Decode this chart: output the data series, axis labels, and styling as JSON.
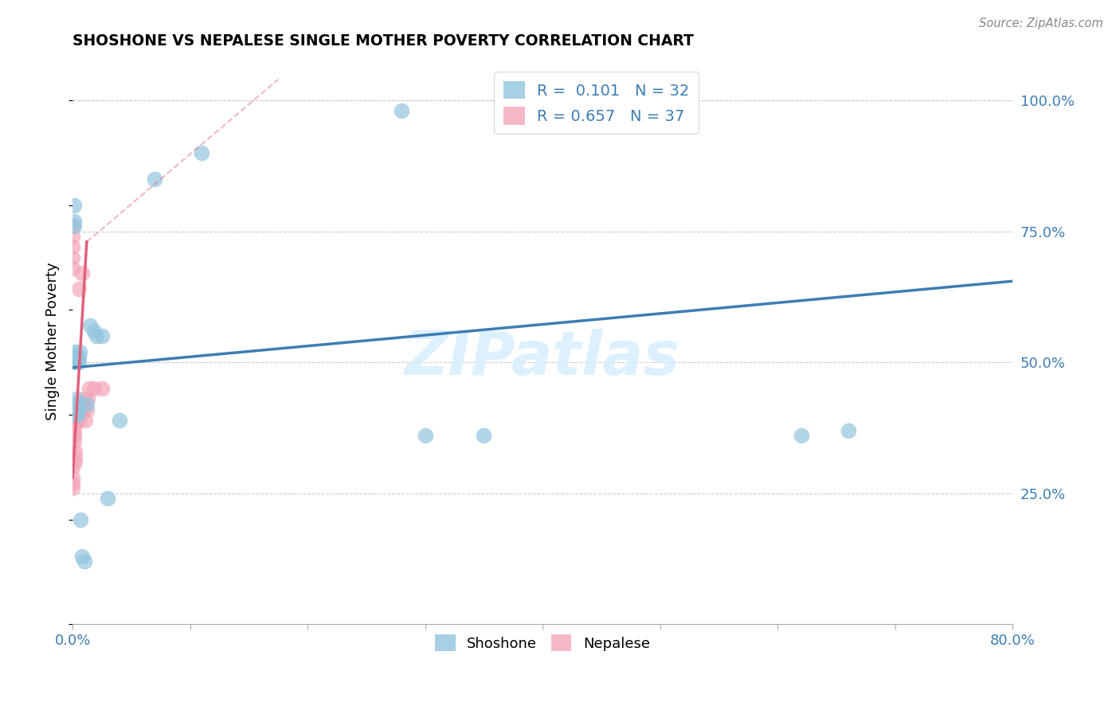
{
  "title": "SHOSHONE VS NEPALESE SINGLE MOTHER POVERTY CORRELATION CHART",
  "source": "Source: ZipAtlas.com",
  "ylabel": "Single Mother Poverty",
  "watermark": "ZIPatlas",
  "xlim": [
    0.0,
    0.8
  ],
  "ylim": [
    0.0,
    1.08
  ],
  "xticks": [
    0.0,
    0.1,
    0.2,
    0.3,
    0.4,
    0.5,
    0.6,
    0.7,
    0.8
  ],
  "xtick_labels": [
    "0.0%",
    "",
    "",
    "",
    "",
    "",
    "",
    "",
    "80.0%"
  ],
  "yticks_right": [
    0.25,
    0.5,
    0.75,
    1.0
  ],
  "ytick_labels_right": [
    "25.0%",
    "50.0%",
    "75.0%",
    "100.0%"
  ],
  "legend_r_shoshone": "0.101",
  "legend_n_shoshone": "32",
  "legend_r_nepalese": "0.657",
  "legend_n_nepalese": "37",
  "shoshone_color": "#92C5DE",
  "nepalese_color": "#F4A6B8",
  "trend_shoshone_color": "#3D7DB3",
  "trend_nepalese_color": "#E0607A",
  "shoshone_x": [
    0.001,
    0.001,
    0.001,
    0.002,
    0.002,
    0.002,
    0.003,
    0.003,
    0.003,
    0.004,
    0.004,
    0.004,
    0.005,
    0.005,
    0.006,
    0.007,
    0.008,
    0.01,
    0.012,
    0.015,
    0.018,
    0.02,
    0.025,
    0.03,
    0.04,
    0.07,
    0.11,
    0.28,
    0.62,
    0.66,
    0.3,
    0.35
  ],
  "shoshone_y": [
    0.8,
    0.77,
    0.76,
    0.52,
    0.51,
    0.5,
    0.43,
    0.42,
    0.4,
    0.42,
    0.41,
    0.4,
    0.51,
    0.5,
    0.52,
    0.2,
    0.13,
    0.12,
    0.42,
    0.57,
    0.56,
    0.55,
    0.55,
    0.24,
    0.39,
    0.85,
    0.9,
    0.98,
    0.36,
    0.37,
    0.36,
    0.36
  ],
  "nepalese_x": [
    0.0,
    0.0,
    0.0,
    0.0,
    0.0,
    0.001,
    0.001,
    0.001,
    0.001,
    0.001,
    0.001,
    0.001,
    0.001,
    0.002,
    0.002,
    0.002,
    0.003,
    0.003,
    0.004,
    0.004,
    0.005,
    0.005,
    0.006,
    0.007,
    0.008,
    0.009,
    0.01,
    0.011,
    0.012,
    0.013,
    0.014,
    0.018,
    0.025,
    0.0,
    0.0,
    0.0,
    0.0
  ],
  "nepalese_y": [
    0.76,
    0.74,
    0.72,
    0.7,
    0.68,
    0.42,
    0.41,
    0.4,
    0.39,
    0.38,
    0.37,
    0.36,
    0.35,
    0.33,
    0.32,
    0.31,
    0.4,
    0.39,
    0.41,
    0.4,
    0.39,
    0.64,
    0.4,
    0.41,
    0.67,
    0.41,
    0.43,
    0.39,
    0.41,
    0.43,
    0.45,
    0.45,
    0.45,
    0.3,
    0.28,
    0.27,
    0.26
  ],
  "trend_sh_x0": 0.0,
  "trend_sh_x1": 0.8,
  "trend_sh_y0": 0.49,
  "trend_sh_y1": 0.655,
  "trend_np_solid_x0": 0.0,
  "trend_np_solid_x1": 0.012,
  "trend_np_solid_y0": 0.28,
  "trend_np_solid_y1": 0.73,
  "trend_np_dash_x0": 0.012,
  "trend_np_dash_x1": 0.175,
  "trend_np_dash_y0": 0.73,
  "trend_np_dash_y1": 1.04
}
